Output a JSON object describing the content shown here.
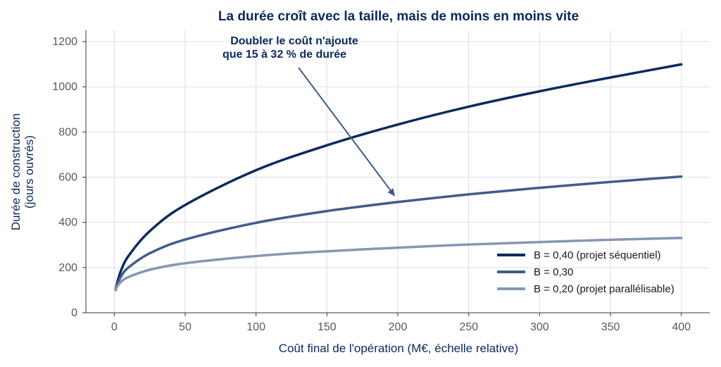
{
  "chart_data": {
    "type": "line",
    "title": "La durée croît avec la taille, mais de moins en moins vite",
    "xlabel": "Coût final de l'opération  (M€, échelle relative)",
    "ylabel_lines": [
      "Durée de construction",
      "(jours ouvrés)"
    ],
    "xlim": [
      -20,
      420
    ],
    "ylim": [
      0,
      1250
    ],
    "xticks": [
      0,
      50,
      100,
      150,
      200,
      250,
      300,
      350,
      400
    ],
    "yticks": [
      0,
      200,
      400,
      600,
      800,
      1000,
      1200
    ],
    "grid": true,
    "legend_position": "bottom-right",
    "series": [
      {
        "name": "B = 0,40  (projet séquentiel)",
        "color": "#0b2a5c",
        "x": [
          1,
          2,
          5,
          10,
          25,
          50,
          100,
          150,
          200,
          250,
          300,
          350,
          400
        ],
        "y": [
          100,
          132,
          190,
          251,
          361,
          477,
          631,
          741,
          833,
          912,
          980,
          1041,
          1099
        ]
      },
      {
        "name": "B = 0,30",
        "color": "#435b8a",
        "x": [
          1,
          2,
          5,
          10,
          25,
          50,
          100,
          150,
          200,
          250,
          300,
          350,
          400
        ],
        "y": [
          100,
          123,
          162,
          200,
          263,
          324,
          398,
          450,
          490,
          524,
          553,
          579,
          603
        ]
      },
      {
        "name": "B = 0,20  (projet parallélisable)",
        "color": "#8796b2",
        "x": [
          1,
          2,
          5,
          10,
          25,
          50,
          100,
          150,
          200,
          250,
          300,
          350,
          400
        ],
        "y": [
          100,
          115,
          138,
          158,
          190,
          219,
          251,
          272,
          288,
          302,
          313,
          323,
          331
        ]
      }
    ],
    "annotation": {
      "lines": [
        "Doubler le coût n'ajoute",
        "que 15 à 32 % de durée"
      ],
      "arrow_to": [
        200,
        490
      ]
    }
  }
}
